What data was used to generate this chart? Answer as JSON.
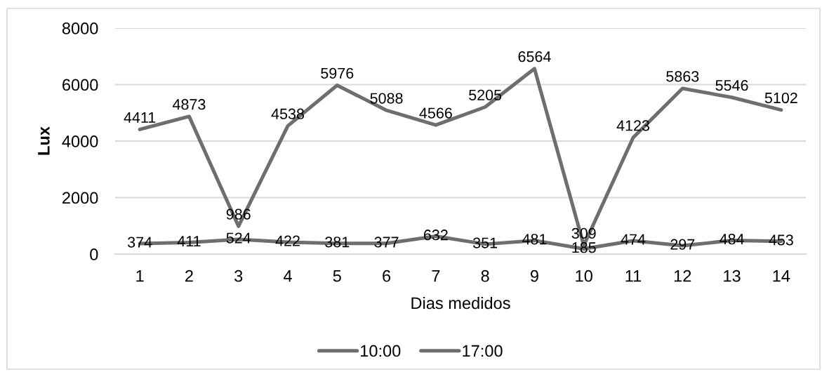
{
  "chart_data": {
    "type": "line",
    "xlabel": "Dias medidos",
    "ylabel": "Lux",
    "categories": [
      "1",
      "2",
      "3",
      "4",
      "5",
      "6",
      "7",
      "8",
      "9",
      "10",
      "11",
      "12",
      "13",
      "14"
    ],
    "series": [
      {
        "name": "10:00",
        "color": "#6e6e6e",
        "values": [
          4411,
          4873,
          986,
          4538,
          5976,
          5088,
          4566,
          5205,
          6564,
          309,
          4123,
          5863,
          5546,
          5102
        ]
      },
      {
        "name": "17:00",
        "color": "#6e6e6e",
        "values": [
          374,
          411,
          524,
          422,
          381,
          377,
          632,
          351,
          481,
          185,
          474,
          297,
          484,
          453
        ]
      }
    ],
    "ylim": [
      0,
      8000
    ],
    "yticks": [
      0,
      2000,
      4000,
      6000,
      8000
    ],
    "grid": "y",
    "legend": "bottom",
    "data_labels": true,
    "marker": "none",
    "line_style": "solid"
  }
}
